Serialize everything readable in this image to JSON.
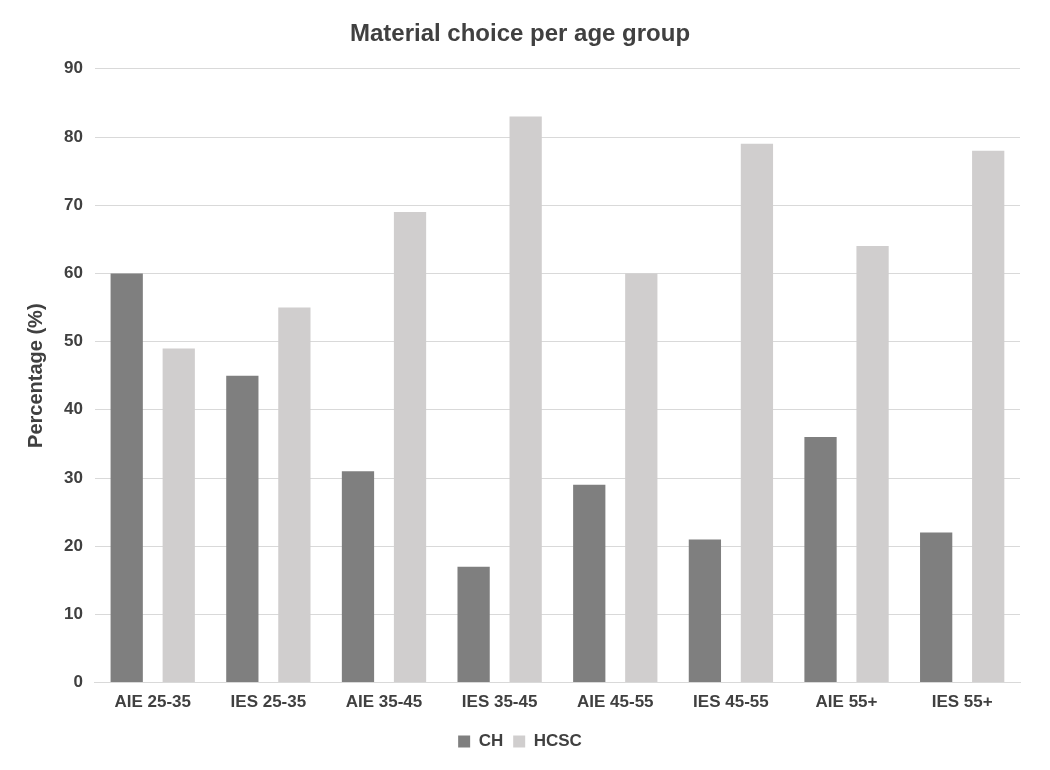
{
  "chart_data": {
    "type": "bar",
    "title": "Material choice per age group",
    "ylabel": "Percentage (%)",
    "categories": [
      "AIE 25-35",
      "IES 25-35",
      "AIE 35-45",
      "IES 35-45",
      "AIE 45-55",
      "IES 45-55",
      "AIE 55+",
      "IES 55+"
    ],
    "series": [
      {
        "name": "CH",
        "color": "#7f7f7f",
        "values": [
          60,
          45,
          31,
          17,
          29,
          21,
          36,
          22
        ]
      },
      {
        "name": "HCSC",
        "color": "#d0cece",
        "values": [
          49,
          55,
          69,
          83,
          60,
          79,
          64,
          78
        ]
      }
    ],
    "ylim": [
      0,
      90
    ],
    "yticks": [
      0,
      10,
      20,
      30,
      40,
      50,
      60,
      70,
      80,
      90
    ],
    "grid": "y",
    "legend": "bottom"
  }
}
